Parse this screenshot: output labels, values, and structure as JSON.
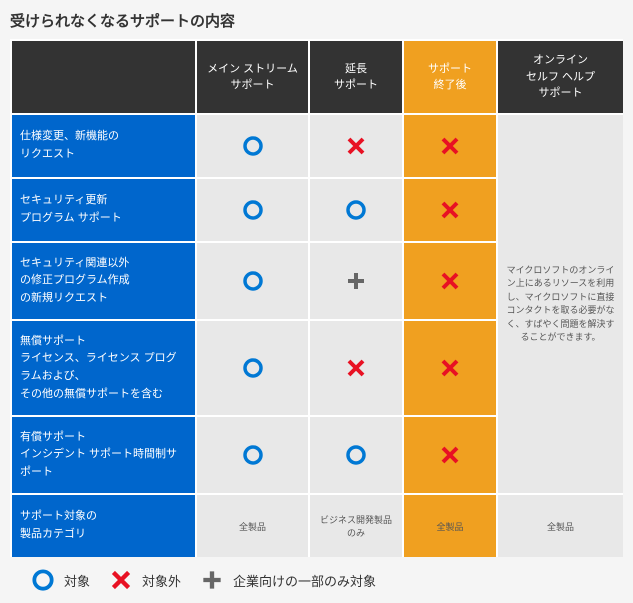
{
  "title": "受けられなくなるサポートの内容",
  "colors": {
    "header_bg": "#333333",
    "header_orange": "#f0a020",
    "row_label_bg": "#0066cc",
    "body_bg": "#e8e8e8",
    "circle": "#0078d4",
    "cross": "#e81123",
    "plus": "#666666"
  },
  "columns": [
    {
      "key": "label",
      "header": ""
    },
    {
      "key": "mainstream",
      "header": "メイン ストリーム\nサポート"
    },
    {
      "key": "extended",
      "header": "延長\nサポート"
    },
    {
      "key": "end",
      "header": "サポート\n終了後",
      "orange": true
    },
    {
      "key": "online",
      "header": "オンライン\nセルフ ヘルプ\nサポート"
    }
  ],
  "rows": [
    {
      "label": "仕様変更、新機能の\nリクエスト",
      "cells": [
        "circle",
        "cross",
        "cross"
      ],
      "h": "h1"
    },
    {
      "label": "セキュリティ更新\nプログラム サポート",
      "cells": [
        "circle",
        "circle",
        "cross"
      ],
      "h": "h2"
    },
    {
      "label": "セキュリティ関連以外\nの修正プログラム作成\nの新規リクエスト",
      "cells": [
        "circle",
        "plus",
        "cross"
      ],
      "h": "h3"
    },
    {
      "label": "無償サポート\nライセンス、ライセンス プログラムおよび、\nその他の無償サポートを含む",
      "cells": [
        "circle",
        "cross",
        "cross"
      ],
      "h": "h4"
    },
    {
      "label": "有償サポート\nインシデント サポート時間制サポート",
      "cells": [
        "circle",
        "circle",
        "cross"
      ],
      "h": "h5"
    },
    {
      "label": "サポート対象の\n製品カテゴリ",
      "cells_text": [
        "全製品",
        "ビジネス開発製品のみ",
        "全製品"
      ],
      "h": "h6",
      "footer": true
    }
  ],
  "online_text": "マイクロソフトのオンライン上にあるリソースを利用し、マイクロソフトに直接コンタクトを取る必要がなく、すばやく問題を解決することができます。",
  "online_footer": "全製品",
  "legend": [
    {
      "icon": "circle",
      "label": "対象"
    },
    {
      "icon": "cross",
      "label": "対象外"
    },
    {
      "icon": "plus",
      "label": "企業向けの一部のみ対象"
    }
  ]
}
